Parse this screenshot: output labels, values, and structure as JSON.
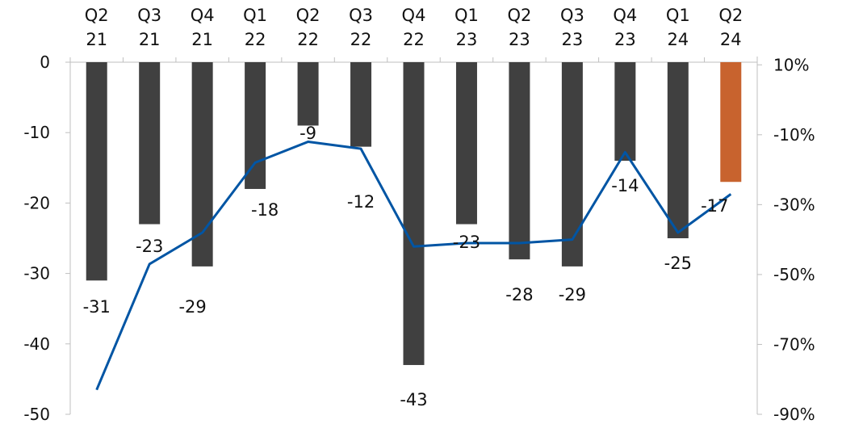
{
  "chart_data": {
    "type": "bar",
    "categories": [
      [
        "Q2",
        "21"
      ],
      [
        "Q3",
        "21"
      ],
      [
        "Q4",
        "21"
      ],
      [
        "Q1",
        "22"
      ],
      [
        "Q2",
        "22"
      ],
      [
        "Q3",
        "22"
      ],
      [
        "Q4",
        "22"
      ],
      [
        "Q1",
        "23"
      ],
      [
        "Q2",
        "23"
      ],
      [
        "Q3",
        "23"
      ],
      [
        "Q4",
        "23"
      ],
      [
        "Q1",
        "24"
      ],
      [
        "Q2",
        "24"
      ]
    ],
    "series": [
      {
        "type": "bar",
        "axis": "left",
        "values": [
          -31,
          -23,
          -29,
          -18,
          -9,
          -12,
          -43,
          -23,
          -28,
          -29,
          -14,
          -25,
          -17
        ],
        "labels": [
          "-31",
          "-23",
          "-29",
          "-18",
          "-9",
          "-12",
          "-43",
          "-23",
          "-28",
          "-29",
          "-14",
          "-25",
          "-17"
        ],
        "color": "#404040",
        "highlight_last_color": "#c8632e"
      },
      {
        "type": "line",
        "axis": "right",
        "values": [
          -0.83,
          -0.47,
          -0.38,
          -0.18,
          -0.12,
          -0.14,
          -0.42,
          -0.41,
          -0.41,
          -0.4,
          -0.15,
          -0.38,
          -0.27
        ],
        "color": "#0055a4"
      }
    ],
    "left_axis": {
      "ylim": [
        -50,
        0
      ],
      "ticks": [
        0,
        -10,
        -20,
        -30,
        -40,
        -50
      ],
      "tick_labels": [
        "0",
        "-10",
        "-20",
        "-30",
        "-40",
        "-50"
      ]
    },
    "right_axis": {
      "ylim": [
        -0.9,
        0.2
      ],
      "ticks": [
        0.1,
        -0.1,
        -0.3,
        -0.5,
        -0.7,
        -0.9
      ],
      "tick_labels": [
        "10%",
        "-10%",
        "-30%",
        "-50%",
        "-70%",
        "-90%"
      ]
    },
    "x_axis_position": "top",
    "grid": false,
    "legend": "none"
  }
}
